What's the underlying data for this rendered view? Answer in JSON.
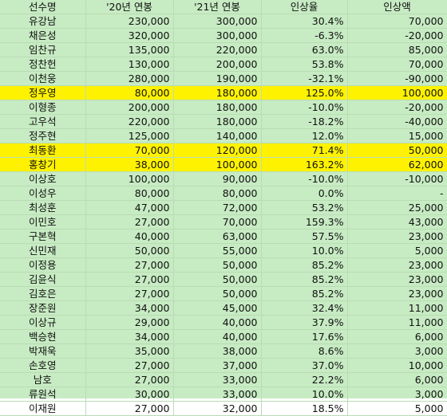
{
  "headers": [
    "선수명",
    "'20년 연봉",
    "'21년 연봉",
    "인상율",
    "인상액"
  ],
  "highlight_color": "#fff200",
  "rows": [
    {
      "name": "유강남",
      "s20": "230,000",
      "s21": "300,000",
      "rate": "30.4%",
      "amount": "70,000",
      "highlight": false
    },
    {
      "name": "채은성",
      "s20": "320,000",
      "s21": "300,000",
      "rate": "-6.3%",
      "amount": "-20,000",
      "highlight": false
    },
    {
      "name": "임찬규",
      "s20": "135,000",
      "s21": "220,000",
      "rate": "63.0%",
      "amount": "85,000",
      "highlight": false
    },
    {
      "name": "정찬헌",
      "s20": "130,000",
      "s21": "200,000",
      "rate": "53.8%",
      "amount": "70,000",
      "highlight": false
    },
    {
      "name": "이천웅",
      "s20": "280,000",
      "s21": "190,000",
      "rate": "-32.1%",
      "amount": "-90,000",
      "highlight": false
    },
    {
      "name": "정우영",
      "s20": "80,000",
      "s21": "180,000",
      "rate": "125.0%",
      "amount": "100,000",
      "highlight": true
    },
    {
      "name": "이형종",
      "s20": "200,000",
      "s21": "180,000",
      "rate": "-10.0%",
      "amount": "-20,000",
      "highlight": false
    },
    {
      "name": "고우석",
      "s20": "220,000",
      "s21": "180,000",
      "rate": "-18.2%",
      "amount": "-40,000",
      "highlight": false
    },
    {
      "name": "정주현",
      "s20": "125,000",
      "s21": "140,000",
      "rate": "12.0%",
      "amount": "15,000",
      "highlight": false
    },
    {
      "name": "최동환",
      "s20": "70,000",
      "s21": "120,000",
      "rate": "71.4%",
      "amount": "50,000",
      "highlight": true
    },
    {
      "name": "홍창기",
      "s20": "38,000",
      "s21": "100,000",
      "rate": "163.2%",
      "amount": "62,000",
      "highlight": true
    },
    {
      "name": "이상호",
      "s20": "100,000",
      "s21": "90,000",
      "rate": "-10.0%",
      "amount": "-10,000",
      "highlight": false
    },
    {
      "name": "이성우",
      "s20": "80,000",
      "s21": "80,000",
      "rate": "0.0%",
      "amount": "-",
      "highlight": false
    },
    {
      "name": "최성훈",
      "s20": "47,000",
      "s21": "72,000",
      "rate": "53.2%",
      "amount": "25,000",
      "highlight": false
    },
    {
      "name": "이민호",
      "s20": "27,000",
      "s21": "70,000",
      "rate": "159.3%",
      "amount": "43,000",
      "highlight": false
    },
    {
      "name": "구본혁",
      "s20": "40,000",
      "s21": "63,000",
      "rate": "57.5%",
      "amount": "23,000",
      "highlight": false
    },
    {
      "name": "신민재",
      "s20": "50,000",
      "s21": "55,000",
      "rate": "10.0%",
      "amount": "5,000",
      "highlight": false
    },
    {
      "name": "이정용",
      "s20": "27,000",
      "s21": "50,000",
      "rate": "85.2%",
      "amount": "23,000",
      "highlight": false
    },
    {
      "name": "김윤식",
      "s20": "27,000",
      "s21": "50,000",
      "rate": "85.2%",
      "amount": "23,000",
      "highlight": false
    },
    {
      "name": "김호은",
      "s20": "27,000",
      "s21": "50,000",
      "rate": "85.2%",
      "amount": "23,000",
      "highlight": false
    },
    {
      "name": "장준원",
      "s20": "34,000",
      "s21": "45,000",
      "rate": "32.4%",
      "amount": "11,000",
      "highlight": false
    },
    {
      "name": "이상규",
      "s20": "29,000",
      "s21": "40,000",
      "rate": "37.9%",
      "amount": "11,000",
      "highlight": false
    },
    {
      "name": "백승현",
      "s20": "34,000",
      "s21": "40,000",
      "rate": "17.6%",
      "amount": "6,000",
      "highlight": false
    },
    {
      "name": "박재욱",
      "s20": "35,000",
      "s21": "38,000",
      "rate": "8.6%",
      "amount": "3,000",
      "highlight": false
    },
    {
      "name": "손호영",
      "s20": "27,000",
      "s21": "37,000",
      "rate": "37.0%",
      "amount": "10,000",
      "highlight": false
    },
    {
      "name": "남호",
      "s20": "27,000",
      "s21": "33,000",
      "rate": "22.2%",
      "amount": "6,000",
      "highlight": false
    },
    {
      "name": "류원석",
      "s20": "30,000",
      "s21": "33,000",
      "rate": "10.0%",
      "amount": "3,000",
      "highlight": false
    },
    {
      "name": "이재원",
      "s20": "27,000",
      "s21": "32,000",
      "rate": "18.5%",
      "amount": "5,000",
      "highlight": false
    }
  ]
}
